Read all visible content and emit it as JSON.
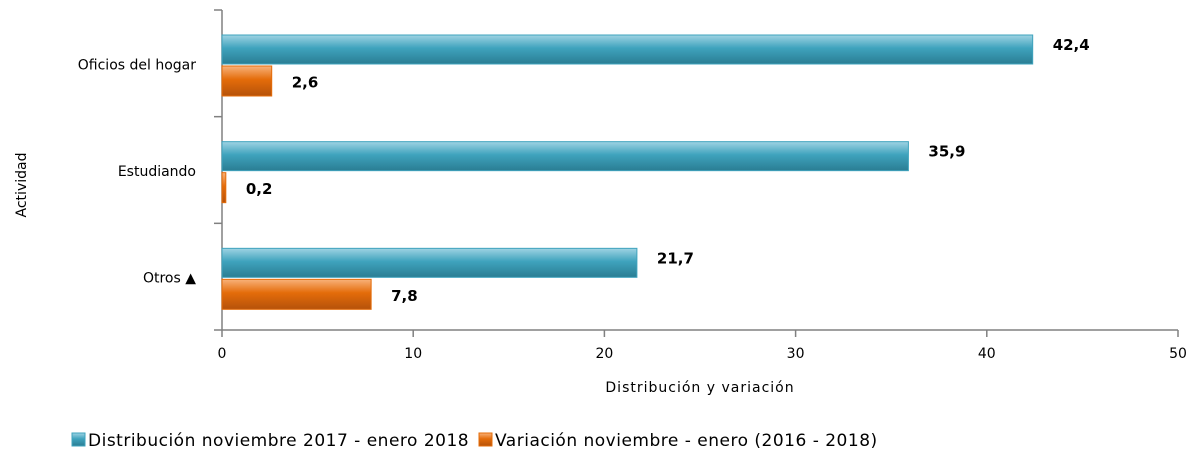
{
  "chart_data": {
    "type": "hbar",
    "x_label": "Distribución y variación",
    "y_label": "Actividad",
    "categories": [
      "Oficios del hogar",
      "Estudiando",
      "Otros ▲"
    ],
    "series": [
      {
        "name": "Distribución noviembre 2017 - enero 2018",
        "color": "#3fa3bd",
        "label_color": "#1f3864",
        "values": [
          42.4,
          35.9,
          21.7
        ],
        "value_labels": [
          "42,4",
          "35,9",
          "21,7"
        ]
      },
      {
        "name": "Variación noviembre - enero (2016 - 2018)",
        "color": "#e46c0a",
        "label_color": "#e46c0a",
        "values": [
          2.6,
          0.2,
          7.8
        ],
        "value_labels": [
          "2,6",
          "0,2",
          "7,8"
        ]
      }
    ],
    "xlim": [
      0,
      50
    ],
    "xticks": [
      0,
      10,
      20,
      30,
      40,
      50
    ],
    "legend": "bottom"
  }
}
